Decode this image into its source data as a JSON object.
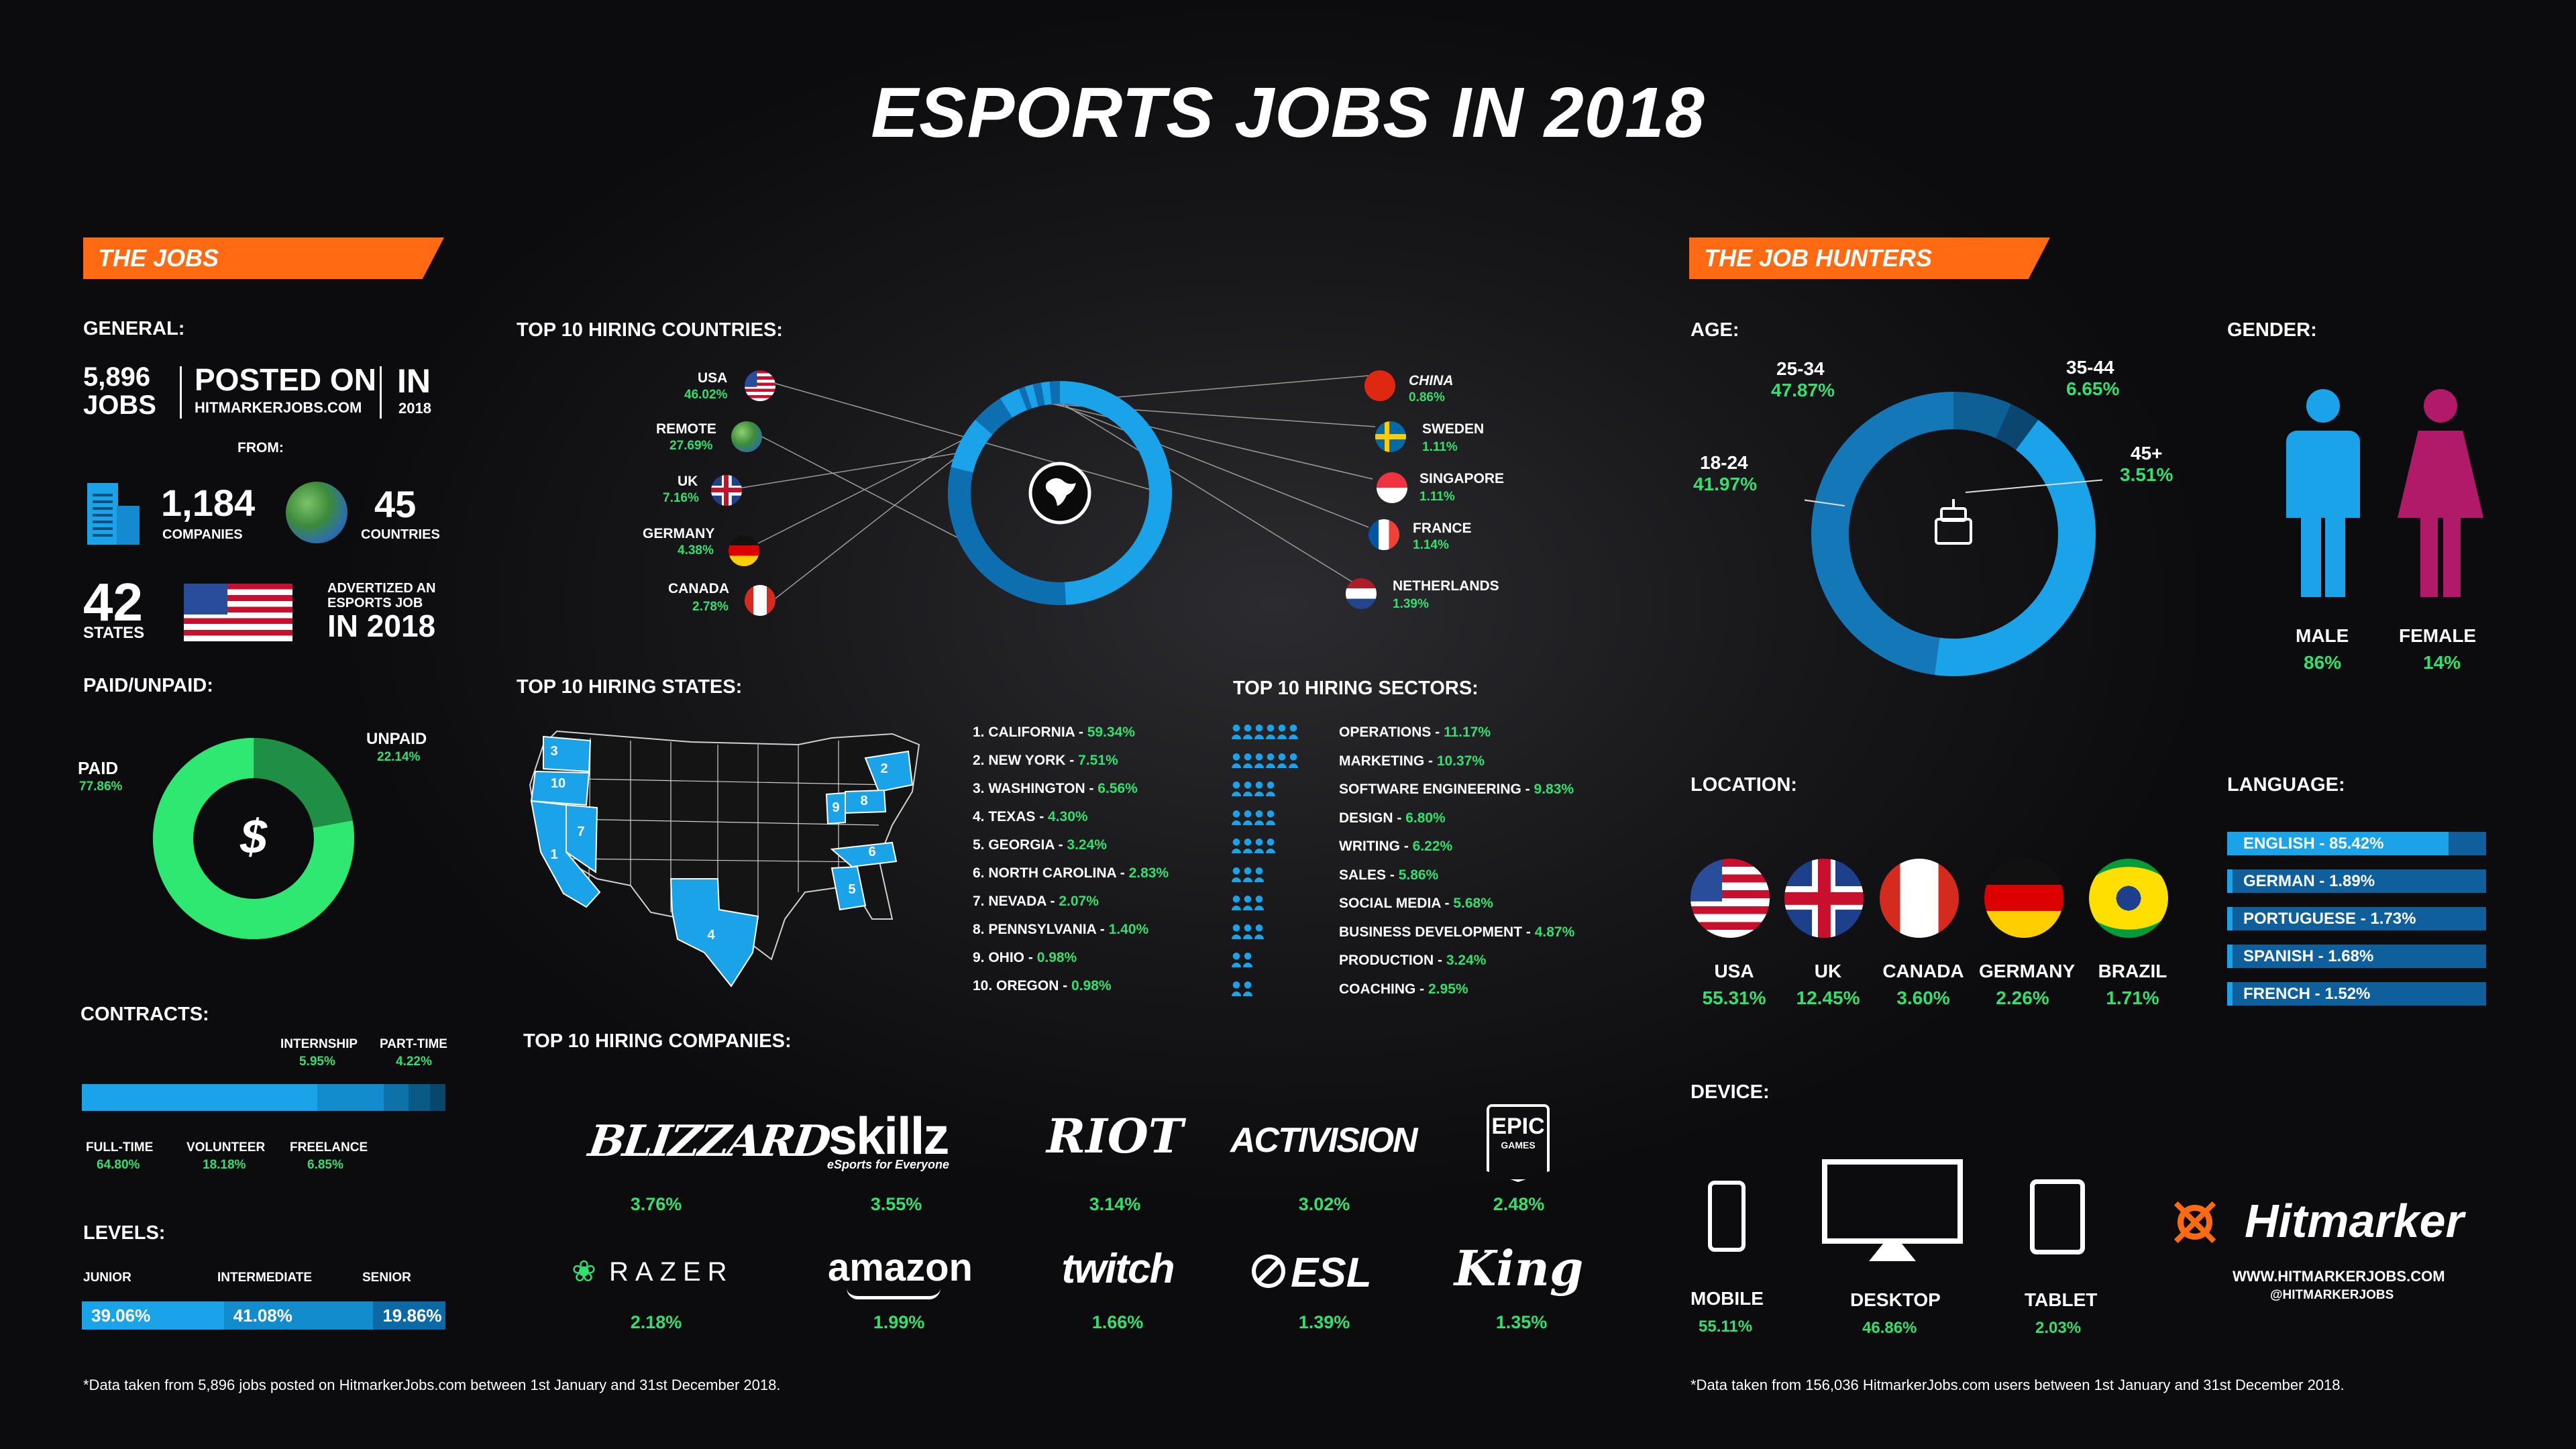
{
  "title": "ESPORTS JOBS IN 2018",
  "jobs": {
    "banner": "THE JOBS",
    "general_label": "GENERAL:",
    "jobs_count": "5,896",
    "jobs_word": "JOBS",
    "posted_on": "POSTED ON",
    "site": "HITMARKERJOBS.COM",
    "in_word": "IN",
    "year": "2018",
    "from_label": "FROM:",
    "companies_count": "1,184",
    "companies_label": "COMPANIES",
    "countries_count": "45",
    "countries_label": "COUNTRIES",
    "states_count": "42",
    "states_label": "STATES",
    "advertized_line1": "ADVERTIZED AN",
    "advertized_line2": "ESPORTS JOB",
    "advertized_line3": "IN 2018",
    "paid_label": "PAID/UNPAID:",
    "paid": {
      "label": "PAID",
      "value": "77.86%"
    },
    "unpaid": {
      "label": "UNPAID",
      "value": "22.14%"
    },
    "paid_fraction": 0.7786,
    "dollar_icon": "$",
    "contracts_label": "CONTRACTS:",
    "contracts": [
      {
        "label": "FULL-TIME",
        "value": "64.80%",
        "share": 64.8,
        "color": "#1aa3e8"
      },
      {
        "label": "VOLUNTEER",
        "value": "18.18%",
        "share": 18.18,
        "color": "#128ccd"
      },
      {
        "label": "FREELANCE",
        "value": "6.85%",
        "share": 6.85,
        "color": "#0e72a8"
      },
      {
        "label": "INTERNSHIP",
        "value": "5.95%",
        "share": 5.95,
        "color": "#0a5a86"
      },
      {
        "label": "PART-TIME",
        "value": "4.22%",
        "share": 4.22,
        "color": "#07476a"
      }
    ],
    "levels_label": "LEVELS:",
    "levels": [
      {
        "label": "JUNIOR",
        "value": "39.06%",
        "share": 39.06,
        "color": "#1aa3e8"
      },
      {
        "label": "INTERMEDIATE",
        "value": "41.08%",
        "share": 41.08,
        "color": "#128ccd"
      },
      {
        "label": "SENIOR",
        "value": "19.86%",
        "share": 19.86,
        "color": "#0b6aa6"
      }
    ],
    "footnote": "*Data taken from 5,896 jobs posted on HitmarkerJobs.com between 1st January and 31st December 2018."
  },
  "countries": {
    "label": "TOP 10 HIRING COUNTRIES:",
    "items": [
      {
        "name": "USA",
        "value": "46.02%",
        "share": 46.02,
        "flag": "us-flag-icon"
      },
      {
        "name": "REMOTE",
        "value": "27.69%",
        "share": 27.69,
        "flag": "globe-icon"
      },
      {
        "name": "UK",
        "value": "7.16%",
        "share": 7.16,
        "flag": "uk-flag-icon"
      },
      {
        "name": "GERMANY",
        "value": "4.38%",
        "share": 4.38,
        "flag": "germany-flag-icon"
      },
      {
        "name": "CANADA",
        "value": "2.78%",
        "share": 2.78,
        "flag": "canada-flag-icon"
      },
      {
        "name": "CHINA",
        "value": "0.86%",
        "share": 0.86,
        "flag": "china-flag-icon"
      },
      {
        "name": "SWEDEN",
        "value": "1.11%",
        "share": 1.11,
        "flag": "sweden-flag-icon"
      },
      {
        "name": "SINGAPORE",
        "value": "1.11%",
        "share": 1.11,
        "flag": "singapore-flag-icon"
      },
      {
        "name": "FRANCE",
        "value": "1.14%",
        "share": 1.14,
        "flag": "france-flag-icon"
      },
      {
        "name": "NETHERLANDS",
        "value": "1.39%",
        "share": 1.39,
        "flag": "netherlands-flag-icon"
      }
    ]
  },
  "states": {
    "label": "TOP 10 HIRING STATES:",
    "items": [
      {
        "name": "1. CALIFORNIA",
        "value": "59.34%"
      },
      {
        "name": "2. NEW YORK",
        "value": "7.51%"
      },
      {
        "name": "3. WASHINGTON",
        "value": "6.56%"
      },
      {
        "name": "4. TEXAS",
        "value": "4.30%"
      },
      {
        "name": "5. GEORGIA",
        "value": "3.24%"
      },
      {
        "name": "6. NORTH CAROLINA",
        "value": "2.83%"
      },
      {
        "name": "7. NEVADA",
        "value": "2.07%"
      },
      {
        "name": "8. PENNSYLVANIA",
        "value": "1.40%"
      },
      {
        "name": "9. OHIO",
        "value": "0.98%"
      },
      {
        "name": "10. OREGON",
        "value": "0.98%"
      }
    ],
    "map_numbers": [
      "1",
      "2",
      "3",
      "4",
      "5",
      "6",
      "7",
      "8",
      "9",
      "10"
    ]
  },
  "sectors": {
    "label": "TOP 10 HIRING SECTORS:",
    "items": [
      {
        "name": "OPERATIONS",
        "value": "11.17%",
        "icons": 6
      },
      {
        "name": "MARKETING",
        "value": "10.37%",
        "icons": 6
      },
      {
        "name": "SOFTWARE ENGINEERING",
        "value": "9.83%",
        "icons": 4
      },
      {
        "name": "DESIGN",
        "value": "6.80%",
        "icons": 4
      },
      {
        "name": "WRITING",
        "value": "6.22%",
        "icons": 4
      },
      {
        "name": "SALES",
        "value": "5.86%",
        "icons": 3
      },
      {
        "name": "SOCIAL MEDIA",
        "value": "5.68%",
        "icons": 3
      },
      {
        "name": "BUSINESS DEVELOPMENT",
        "value": "4.87%",
        "icons": 3
      },
      {
        "name": "PRODUCTION",
        "value": "3.24%",
        "icons": 2
      },
      {
        "name": "COACHING",
        "value": "2.95%",
        "icons": 2
      }
    ]
  },
  "companies": {
    "label": "TOP 10 HIRING COMPANIES:",
    "items": [
      {
        "name": "BLIZZARD",
        "value": "3.76%"
      },
      {
        "name": "skillz",
        "sub": "eSports for Everyone",
        "value": "3.55%"
      },
      {
        "name": "RIOT",
        "value": "3.14%"
      },
      {
        "name": "ACTIVISION",
        "value": "3.02%"
      },
      {
        "name": "EPIC",
        "sub": "GAMES",
        "value": "2.48%"
      },
      {
        "name": "RAZER",
        "value": "2.18%"
      },
      {
        "name": "amazon",
        "value": "1.99%"
      },
      {
        "name": "twitch",
        "value": "1.66%"
      },
      {
        "name": "ESL",
        "value": "1.39%"
      },
      {
        "name": "King",
        "value": "1.35%"
      }
    ]
  },
  "hunters": {
    "banner": "THE JOB HUNTERS",
    "age_label": "AGE:",
    "ages": [
      {
        "label": "18-24",
        "value": "41.97%",
        "share": 41.97,
        "color": "#1aa3e8"
      },
      {
        "label": "25-34",
        "value": "47.87%",
        "share": 47.87,
        "color": "#1478b8"
      },
      {
        "label": "35-44",
        "value": "6.65%",
        "share": 6.65,
        "color": "#0d5f94"
      },
      {
        "label": "45+",
        "value": "3.51%",
        "share": 3.51,
        "color": "#0a4670"
      }
    ],
    "gender_label": "GENDER:",
    "male": {
      "label": "MALE",
      "value": "86%"
    },
    "female": {
      "label": "FEMALE",
      "value": "14%"
    },
    "location_label": "LOCATION:",
    "locations": [
      {
        "name": "USA",
        "value": "55.31%",
        "flag": "us-flag-icon"
      },
      {
        "name": "UK",
        "value": "12.45%",
        "flag": "uk-flag-icon"
      },
      {
        "name": "CANADA",
        "value": "3.60%",
        "flag": "canada-flag-icon"
      },
      {
        "name": "GERMANY",
        "value": "2.26%",
        "flag": "germany-flag-icon"
      },
      {
        "name": "BRAZIL",
        "value": "1.71%",
        "flag": "brazil-flag-icon"
      }
    ],
    "language_label": "LANGUAGE:",
    "languages": [
      {
        "text": "ENGLISH - 85.42%",
        "share": 85.42
      },
      {
        "text": "GERMAN - 1.89%",
        "share": 1.89
      },
      {
        "text": "PORTUGUESE - 1.73%",
        "share": 1.73
      },
      {
        "text": "SPANISH - 1.68%",
        "share": 1.68
      },
      {
        "text": "FRENCH - 1.52%",
        "share": 1.52
      }
    ],
    "device_label": "DEVICE:",
    "devices": [
      {
        "name": "MOBILE",
        "value": "55.11%"
      },
      {
        "name": "DESKTOP",
        "value": "46.86%"
      },
      {
        "name": "TABLET",
        "value": "2.03%"
      }
    ],
    "brand": "Hitmarker",
    "brand_url": "WWW.HITMARKERJOBS.COM",
    "brand_handle": "@HITMARKERJOBS",
    "footnote": "*Data taken from 156,036 HitmarkerJobs.com users between 1st January and 31st December 2018."
  }
}
